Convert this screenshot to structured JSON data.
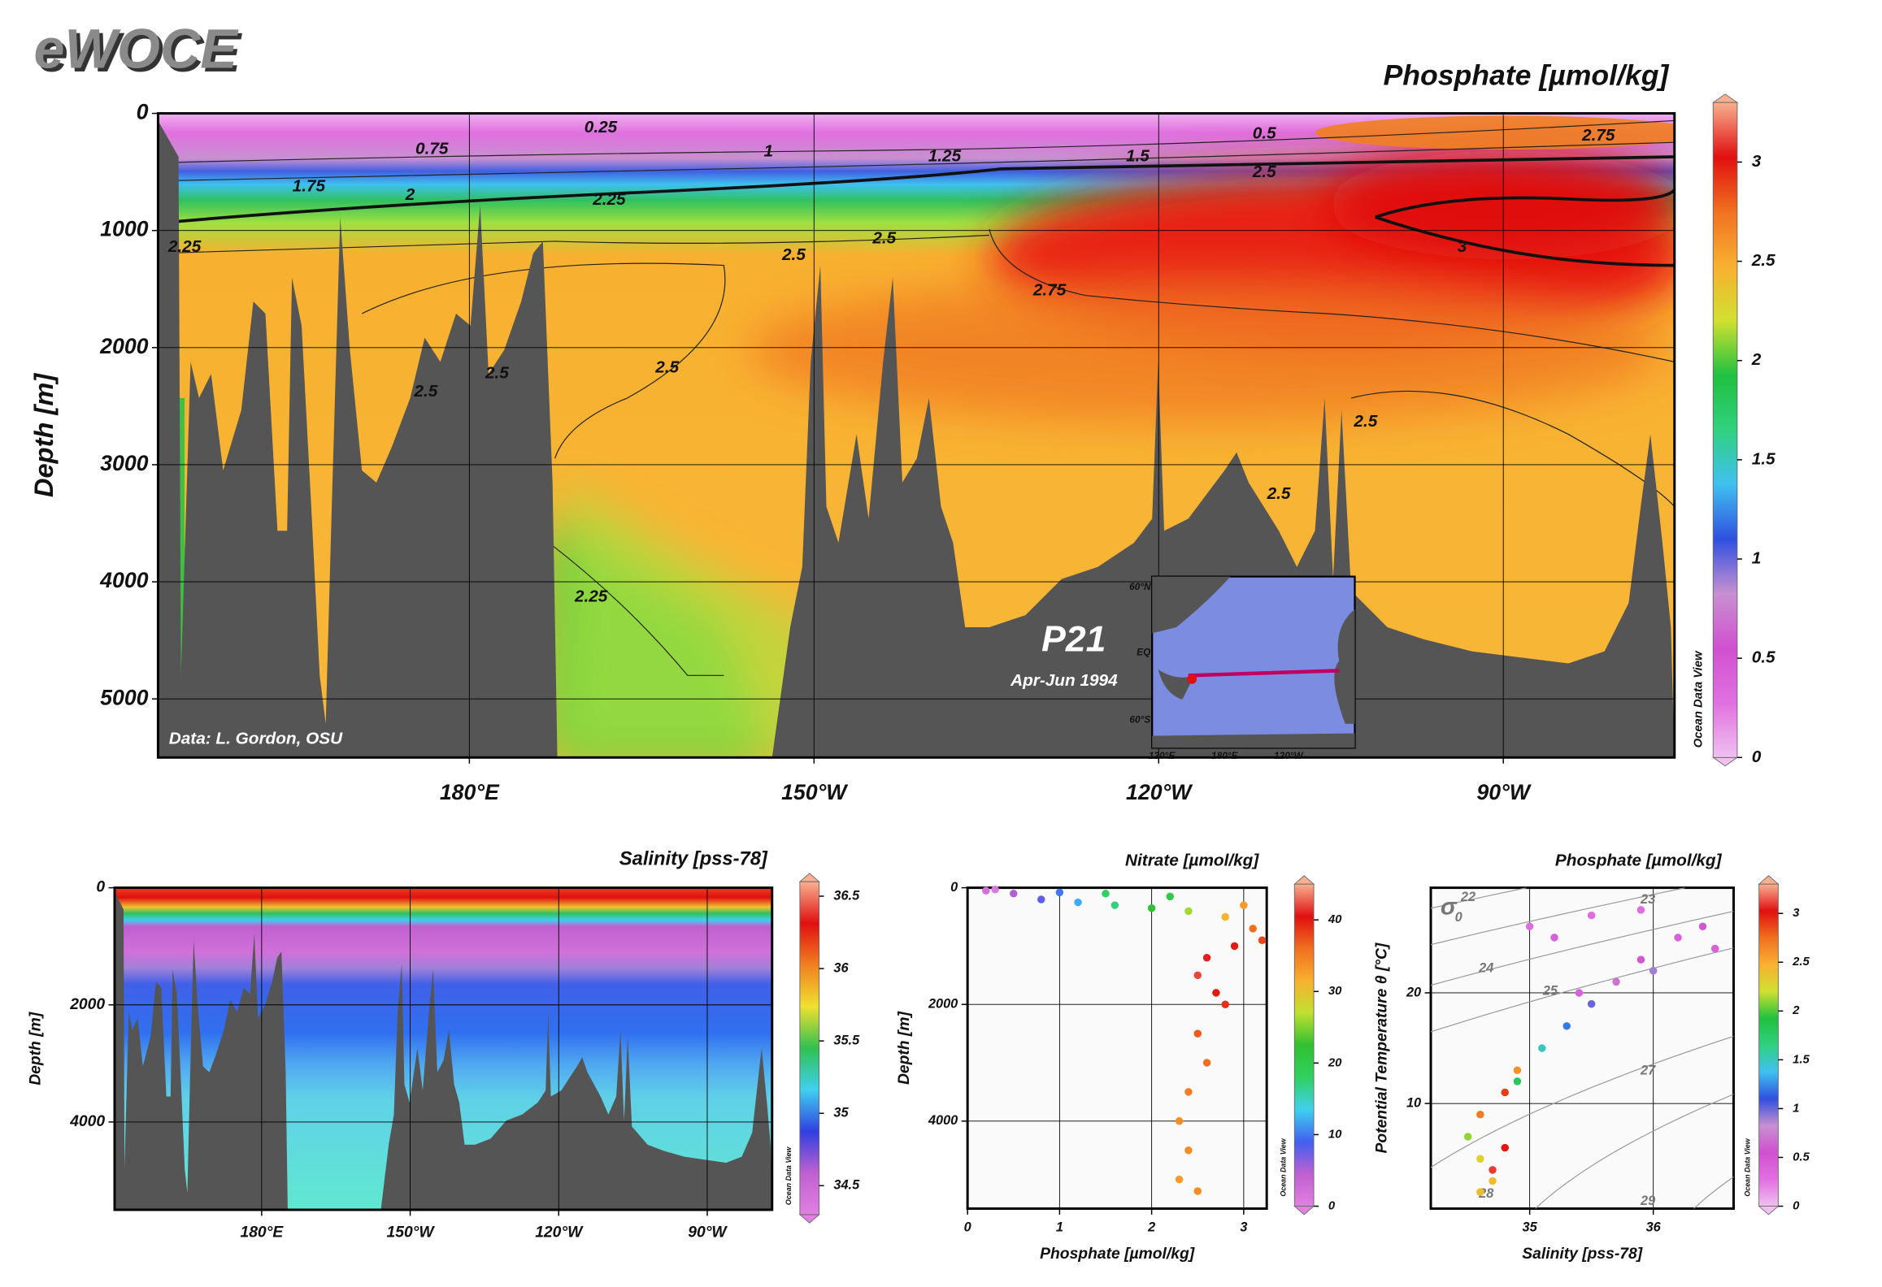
{
  "logo": "eWOCE",
  "chart_data": [
    {
      "type": "section",
      "title": "Phosphate [µmol/kg]",
      "y_label": "Depth [m]",
      "xlim": [
        152.9,
        284.9
      ],
      "xticks": [
        {
          "value": 180,
          "label": "180°E"
        },
        {
          "value": 210,
          "label": "150°W"
        },
        {
          "value": 240,
          "label": "120°W"
        },
        {
          "value": 270,
          "label": "90°W"
        }
      ],
      "ylim": [
        0,
        5500
      ],
      "y_direction": "down",
      "yticks": [
        0,
        1000,
        2000,
        3000,
        4000,
        5000
      ],
      "grid": true,
      "colorbar": {
        "lim": [
          0,
          3.3
        ],
        "ticks": [
          0,
          0.5,
          1,
          1.5,
          2,
          2.5,
          3
        ],
        "colors": [
          "#f0c0f0",
          "#e070e0",
          "#d050d0",
          "#c890d0",
          "#3050e0",
          "#40c0f0",
          "#30d080",
          "#20c040",
          "#d0e030",
          "#f8b030",
          "#f07020",
          "#e01010",
          "#f8b090"
        ]
      },
      "contour_labels": [
        0.25,
        0.5,
        0.75,
        1,
        1.25,
        1.5,
        1.75,
        2,
        2.25,
        2.25,
        2.5,
        2.5,
        2.75,
        3,
        2.5,
        2.75,
        2.5,
        2.5,
        2.5,
        2.25,
        2.5,
        2.5
      ],
      "annotations": {
        "credit": "Data: L. Gordon, OSU",
        "cruise": "P21",
        "dates": "Apr-Jun 1994",
        "software": "Ocean Data View"
      },
      "inset": {
        "labels": [
          "60°N",
          "EQ",
          "60°S",
          "120°E",
          "180°E",
          "120°W"
        ]
      }
    },
    {
      "type": "section",
      "title": "Salinity [pss-78]",
      "y_label": "Depth [m]",
      "xlim": [
        150.3,
        283.1
      ],
      "xticks": [
        {
          "value": 180,
          "label": "180°E"
        },
        {
          "value": 210,
          "label": "150°W"
        },
        {
          "value": 240,
          "label": "120°W"
        },
        {
          "value": 270,
          "label": "90°W"
        }
      ],
      "ylim": [
        0,
        5500
      ],
      "y_direction": "down",
      "yticks": [
        0,
        2000,
        4000
      ],
      "grid": true,
      "colorbar": {
        "lim": [
          34.3,
          36.6
        ],
        "ticks": [
          34.5,
          35,
          35.5,
          36,
          36.5
        ],
        "colors": [
          "#e080e0",
          "#c060d0",
          "#3040e0",
          "#40d0f0",
          "#30c050",
          "#f0e030",
          "#f08020",
          "#e01010",
          "#f8b090"
        ]
      },
      "annotations": {
        "software": "Ocean Data View"
      }
    },
    {
      "type": "scatter",
      "title": "Nitrate [µmol/kg]",
      "x_label": "Phosphate [µmol/kg]",
      "y_label": "Depth [m]",
      "xlim": [
        0,
        3.25
      ],
      "xticks": [
        0,
        1,
        2,
        3
      ],
      "ylim": [
        0,
        5500
      ],
      "y_direction": "down",
      "yticks": [
        0,
        2000,
        4000
      ],
      "grid": true,
      "x": [
        0.2,
        0.5,
        0.8,
        1.2,
        1.6,
        2.0,
        2.4,
        2.8,
        3.1,
        3.2,
        2.9,
        2.6,
        2.5,
        2.7,
        2.8,
        2.5,
        2.6,
        2.4,
        2.3,
        2.4,
        2.3,
        2.5,
        0.3,
        1.0,
        2.2,
        3.0,
        1.5
      ],
      "y": [
        50,
        100,
        200,
        250,
        300,
        350,
        400,
        500,
        700,
        900,
        1000,
        1200,
        1500,
        1800,
        2000,
        2500,
        3000,
        3500,
        4000,
        4500,
        5000,
        5200,
        30,
        80,
        150,
        300,
        100
      ],
      "color_values": [
        2,
        5,
        8,
        12,
        17,
        22,
        26,
        31,
        36,
        38,
        40,
        41,
        42,
        40,
        39,
        37,
        36,
        35,
        34,
        34,
        33,
        34,
        1,
        10,
        20,
        33,
        18
      ],
      "colorbar": {
        "lim": [
          0,
          45
        ],
        "ticks": [
          0,
          10,
          20,
          30,
          40
        ],
        "colors": [
          "#e080e0",
          "#c060d0",
          "#4060f0",
          "#40d0f0",
          "#30d060",
          "#30c030",
          "#c0e030",
          "#f8b030",
          "#f07020",
          "#e01010",
          "#f8b090"
        ]
      },
      "annotations": {
        "software": "Ocean Data View"
      }
    },
    {
      "type": "scatter",
      "title": "Phosphate [µmol/kg]",
      "x_label": "Salinity [pss-78]",
      "y_label": "Potential Temperature θ [°C]",
      "xlim": [
        34.2,
        36.65
      ],
      "xticks": [
        35,
        36
      ],
      "ylim": [
        0.5,
        29.5
      ],
      "y_direction": "up",
      "yticks": [
        10,
        20
      ],
      "grid": true,
      "x": [
        34.6,
        34.7,
        34.6,
        34.5,
        34.6,
        34.8,
        34.9,
        34.9,
        35.1,
        35.3,
        35.5,
        35.7,
        35.9,
        36.2,
        36.4,
        36.5,
        35.0,
        35.5,
        35.9,
        35.2,
        36.0,
        35.4,
        34.8,
        34.7
      ],
      "y": [
        2,
        3,
        5,
        7,
        9,
        11,
        13,
        12,
        15,
        17,
        19,
        21,
        23,
        25,
        26,
        24,
        26,
        27,
        27.5,
        25,
        22,
        20,
        6,
        4
      ],
      "color_values": [
        2.4,
        2.4,
        2.3,
        2.1,
        2.7,
        2.9,
        2.6,
        1.8,
        1.5,
        1.2,
        1.0,
        0.7,
        0.5,
        0.4,
        0.5,
        0.4,
        0.3,
        0.3,
        0.3,
        0.4,
        0.9,
        0.4,
        3.0,
        3.1
      ],
      "density": {
        "symbol": "σ",
        "subscript": "0",
        "contours": [
          22,
          23,
          24,
          25,
          27,
          28,
          29
        ]
      },
      "colorbar": {
        "lim": [
          0,
          3.3
        ],
        "ticks": [
          0,
          0.5,
          1,
          1.5,
          2,
          2.5,
          3
        ],
        "colors": [
          "#f0c0f0",
          "#e070e0",
          "#d050d0",
          "#c890d0",
          "#3050e0",
          "#40c0f0",
          "#30d080",
          "#20c040",
          "#d0e030",
          "#f8b030",
          "#f07020",
          "#e01010",
          "#f8b090"
        ]
      },
      "annotations": {
        "software": "Ocean Data View"
      }
    }
  ]
}
